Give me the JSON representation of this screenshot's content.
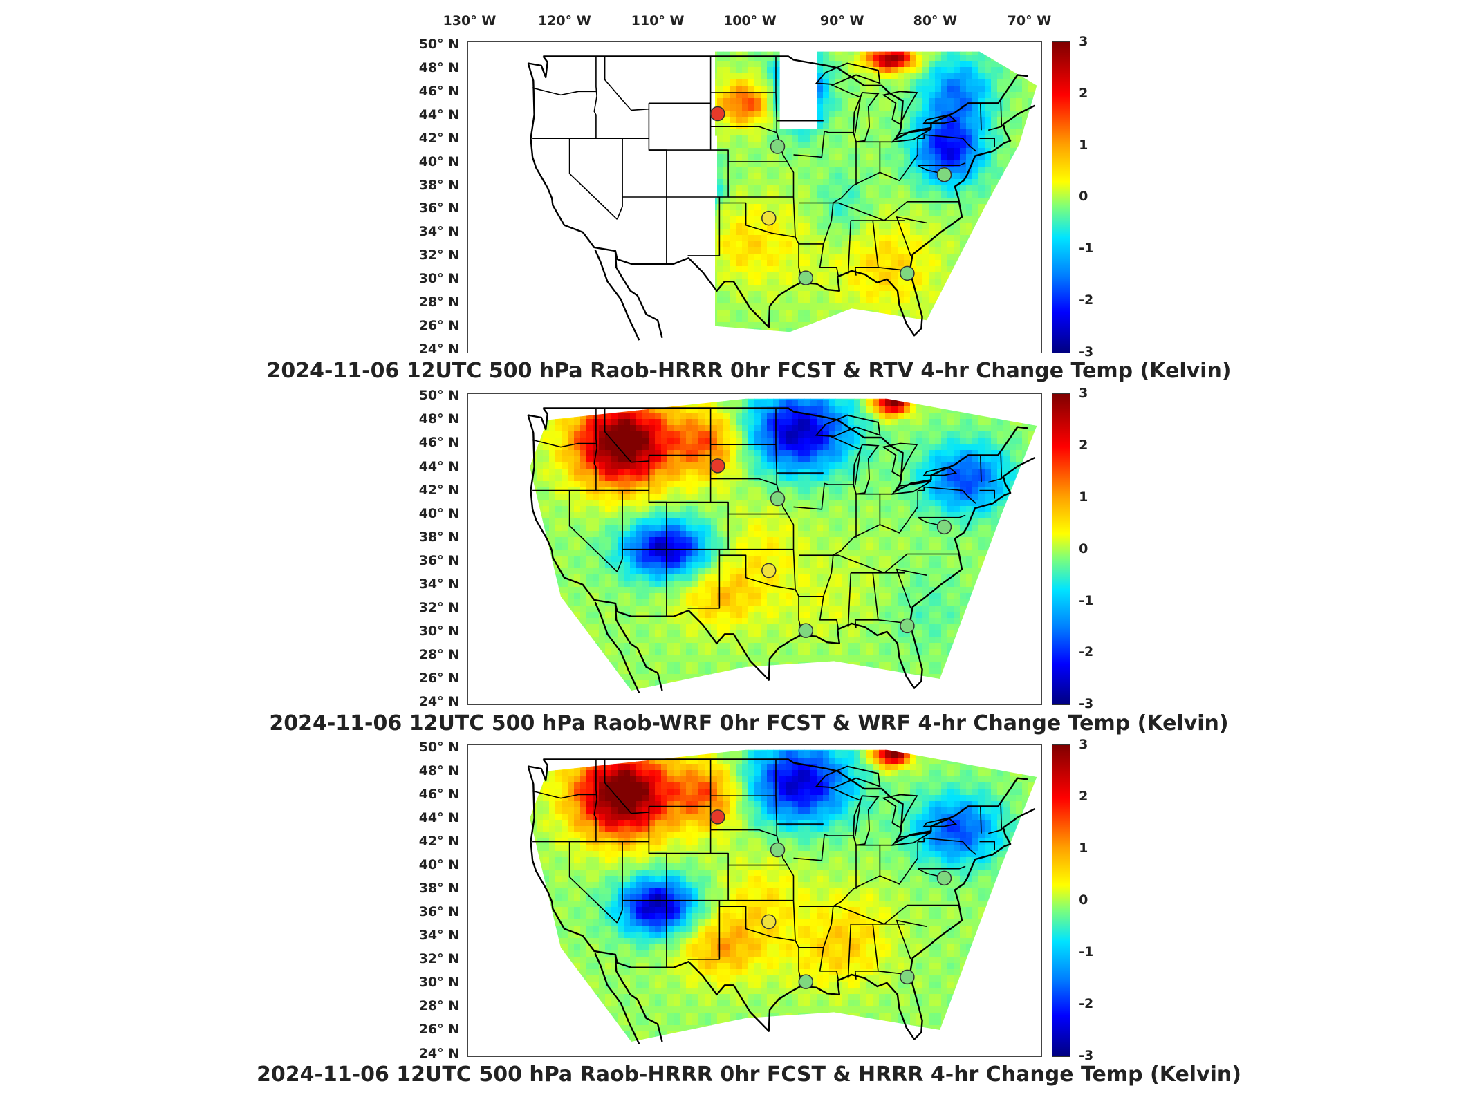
{
  "longitude_labels": [
    "130° W",
    "120° W",
    "110° W",
    "100° W",
    "90° W",
    "80° W",
    "70° W"
  ],
  "latitude_labels": [
    "50° N",
    "48° N",
    "46° N",
    "44° N",
    "42° N",
    "40° N",
    "38° N",
    "36° N",
    "34° N",
    "32° N",
    "30° N",
    "28° N",
    "26° N",
    "24° N"
  ],
  "colorbar": {
    "ticks": [
      "3",
      "2",
      "1",
      "0",
      "-1",
      "-2",
      "-3"
    ],
    "range": [
      -3,
      3
    ],
    "units": "Kelvin",
    "colors": [
      "#800000",
      "#ff0000",
      "#ffa000",
      "#ffff00",
      "#7dff7a",
      "#00e4ff",
      "#0080ff",
      "#0000ff",
      "#000080"
    ]
  },
  "panels": [
    {
      "title": "2024-11-06 12UTC 500 hPa Raob-HRRR 0hr FCST & RTV 4-hr Change Temp (Kelvin)",
      "field": "RTV"
    },
    {
      "title": "2024-11-06 12UTC 500 hPa Raob-WRF 0hr FCST & WRF 4-hr Change Temp (Kelvin)",
      "field": "WRF"
    },
    {
      "title": "2024-11-06 12UTC 500 hPa Raob-HRRR 0hr FCST & HRRR 4-hr Change Temp (Kelvin)",
      "field": "HRRR"
    }
  ],
  "raob_stations": [
    {
      "lon": -103.2,
      "lat": 44.1,
      "value": 2.6,
      "color": "#e63a2a"
    },
    {
      "lon": -96.4,
      "lat": 41.3,
      "value": 0.3,
      "color": "#7fd87f"
    },
    {
      "lon": -97.4,
      "lat": 35.2,
      "value": 1.0,
      "color": "#f0e23c"
    },
    {
      "lon": -93.2,
      "lat": 30.1,
      "value": 0.0,
      "color": "#7fd87f"
    },
    {
      "lon": -81.7,
      "lat": 30.5,
      "value": 0.2,
      "color": "#7fd87f"
    },
    {
      "lon": -77.5,
      "lat": 38.9,
      "value": 0.0,
      "color": "#7fd87f"
    }
  ]
}
